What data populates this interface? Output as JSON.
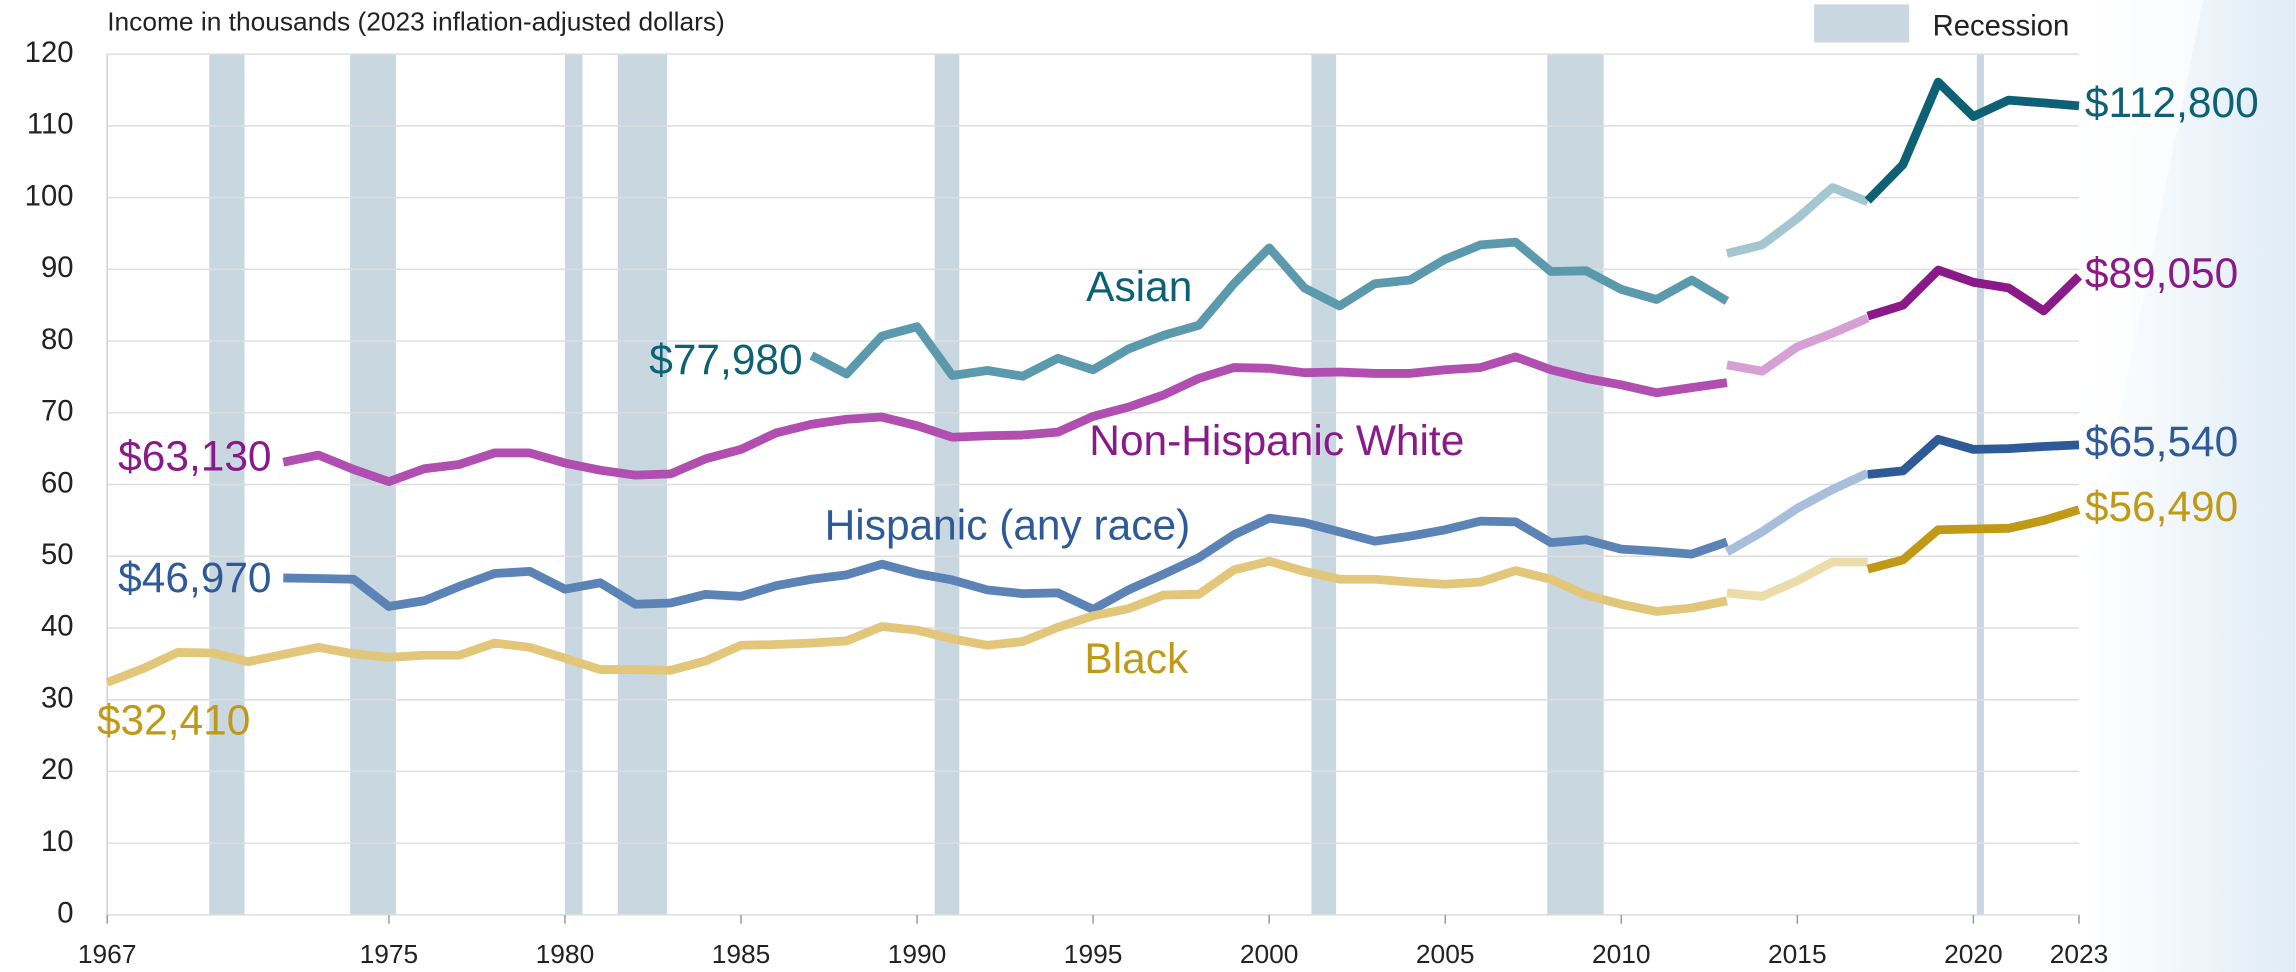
{
  "chart_data": {
    "type": "line",
    "title": "Income in thousands (2023 inflation-adjusted dollars)",
    "legend": {
      "label": "Recession",
      "color": "#c9d7e0",
      "position": "top-right"
    },
    "recessions": [
      [
        1969.9,
        1970.9
      ],
      [
        1973.9,
        1975.2
      ],
      [
        1980.0,
        1980.5
      ],
      [
        1981.5,
        1982.9
      ],
      [
        1990.5,
        1991.2
      ],
      [
        2001.2,
        2001.9
      ],
      [
        2007.9,
        2009.5
      ],
      [
        2020.1,
        2020.3
      ]
    ],
    "xlim": [
      1967,
      2023
    ],
    "xticks": [
      1967,
      1975,
      1980,
      1985,
      1990,
      1995,
      2000,
      2005,
      2010,
      2015,
      2020,
      2023
    ],
    "ylim": [
      0,
      120
    ],
    "yticks": [
      0,
      10,
      20,
      30,
      40,
      50,
      60,
      70,
      80,
      90,
      100,
      110,
      120
    ],
    "grid": true,
    "series": [
      {
        "name": "Asian",
        "color": "#0e6175",
        "segments": [
          {
            "color": "#5b9aac",
            "x": [
              1987,
              1988,
              1989,
              1990,
              1991,
              1992,
              1993,
              1994,
              1995,
              1996,
              1997,
              1998,
              1999,
              2000,
              2001,
              2002,
              2003,
              2004,
              2005,
              2006,
              2007,
              2008,
              2009,
              2010,
              2011,
              2012,
              2013
            ],
            "values": [
              77.98,
              75.4,
              80.7,
              82.0,
              75.2,
              75.9,
              75.1,
              77.6,
              76.0,
              78.9,
              80.8,
              82.2,
              88.0,
              93.0,
              87.4,
              84.9,
              88.0,
              88.5,
              91.4,
              93.4,
              93.8,
              89.7,
              89.8,
              87.2,
              85.8,
              88.5,
              85.6
            ],
            "value_labels": [
              "$77,980",
              null,
              null,
              null,
              null,
              null,
              null,
              null,
              null,
              null,
              null,
              null,
              null,
              null,
              null,
              null,
              null,
              null,
              null,
              null,
              null,
              null,
              null,
              null,
              null,
              null,
              null
            ]
          },
          {
            "color": "#a3c6d0",
            "x": [
              2013,
              2014,
              2015,
              2016,
              2017
            ],
            "values": [
              92.2,
              93.4,
              97.1,
              101.4,
              99.4
            ]
          },
          {
            "color": "#0e6175",
            "x": [
              2017,
              2018,
              2019,
              2020,
              2021,
              2022,
              2023
            ],
            "values": [
              99.6,
              104.6,
              116.1,
              111.3,
              113.6,
              113.2,
              112.8
            ],
            "value_labels": [
              null,
              null,
              null,
              null,
              null,
              null,
              "$112,800"
            ]
          }
        ]
      },
      {
        "name": "Non-Hispanic White",
        "color": "#8b1a89",
        "segments": [
          {
            "color": "#b04fb0",
            "x": [
              1972,
              1973,
              1974,
              1975,
              1976,
              1977,
              1978,
              1979,
              1980,
              1981,
              1982,
              1983,
              1984,
              1985,
              1986,
              1987,
              1988,
              1989,
              1990,
              1991,
              1992,
              1993,
              1994,
              1995,
              1996,
              1997,
              1998,
              1999,
              2000,
              2001,
              2002,
              2003,
              2004,
              2005,
              2006,
              2007,
              2008,
              2009,
              2010,
              2011,
              2012,
              2013
            ],
            "values": [
              63.13,
              64.1,
              62.1,
              60.4,
              62.2,
              62.8,
              64.4,
              64.4,
              63.0,
              62.0,
              61.3,
              61.5,
              63.6,
              64.9,
              67.2,
              68.4,
              69.1,
              69.4,
              68.2,
              66.6,
              66.8,
              66.9,
              67.3,
              69.5,
              70.8,
              72.5,
              74.8,
              76.3,
              76.2,
              75.6,
              75.7,
              75.5,
              75.5,
              76.0,
              76.3,
              77.8,
              76.0,
              74.8,
              73.9,
              72.8,
              73.5,
              74.2
            ],
            "value_labels": [
              "$63,130",
              null,
              null,
              null,
              null,
              null,
              null,
              null,
              null,
              null,
              null,
              null,
              null,
              null,
              null,
              null,
              null,
              null,
              null,
              null,
              null,
              null,
              null,
              null,
              null,
              null,
              null,
              null,
              null,
              null,
              null,
              null,
              null,
              null,
              null,
              null,
              null,
              null,
              null,
              null,
              null,
              null
            ]
          },
          {
            "color": "#d7a0d4",
            "x": [
              2013,
              2014,
              2015,
              2016,
              2017
            ],
            "values": [
              76.7,
              75.8,
              79.2,
              81.1,
              83.2
            ]
          },
          {
            "color": "#8b1a89",
            "x": [
              2017,
              2018,
              2019,
              2020,
              2021,
              2022,
              2023
            ],
            "values": [
              83.5,
              85.0,
              89.9,
              88.2,
              87.4,
              84.2,
              89.05
            ],
            "value_labels": [
              null,
              null,
              null,
              null,
              null,
              null,
              "$89,050"
            ]
          }
        ]
      },
      {
        "name": "Hispanic (any race)",
        "color": "#2e5a97",
        "segments": [
          {
            "color": "#5b83b6",
            "x": [
              1972,
              1973,
              1974,
              1975,
              1976,
              1977,
              1978,
              1979,
              1980,
              1981,
              1982,
              1983,
              1984,
              1985,
              1986,
              1987,
              1988,
              1989,
              1990,
              1991,
              1992,
              1993,
              1994,
              1995,
              1996,
              1997,
              1998,
              1999,
              2000,
              2001,
              2002,
              2003,
              2004,
              2005,
              2006,
              2007,
              2008,
              2009,
              2010,
              2011,
              2012,
              2013
            ],
            "values": [
              46.97,
              46.9,
              46.8,
              43.0,
              43.8,
              45.8,
              47.6,
              47.9,
              45.4,
              46.3,
              43.3,
              43.5,
              44.7,
              44.4,
              45.9,
              46.8,
              47.4,
              48.9,
              47.6,
              46.7,
              45.3,
              44.8,
              44.9,
              42.6,
              45.3,
              47.5,
              49.8,
              53.0,
              55.3,
              54.7,
              53.4,
              52.1,
              52.8,
              53.7,
              54.9,
              54.8,
              51.9,
              52.3,
              51.0,
              50.7,
              50.3,
              52.0
            ],
            "value_labels": [
              "$46,970",
              null,
              null,
              null,
              null,
              null,
              null,
              null,
              null,
              null,
              null,
              null,
              null,
              null,
              null,
              null,
              null,
              null,
              null,
              null,
              null,
              null,
              null,
              null,
              null,
              null,
              null,
              null,
              null,
              null,
              null,
              null,
              null,
              null,
              null,
              null,
              null,
              null,
              null,
              null,
              null,
              null
            ]
          },
          {
            "color": "#a8bfdc",
            "x": [
              2013,
              2014,
              2015,
              2016,
              2017
            ],
            "values": [
              50.6,
              53.4,
              56.7,
              59.3,
              61.6
            ]
          },
          {
            "color": "#2e5a97",
            "x": [
              2017,
              2018,
              2019,
              2020,
              2021,
              2022,
              2023
            ],
            "values": [
              61.4,
              61.9,
              66.3,
              64.9,
              65.0,
              65.3,
              65.54
            ],
            "value_labels": [
              null,
              null,
              null,
              null,
              null,
              null,
              "$65,540"
            ]
          }
        ]
      },
      {
        "name": "Black",
        "color": "#c09a16",
        "segments": [
          {
            "color": "#e2c77a",
            "x": [
              1967,
              1968,
              1969,
              1970,
              1971,
              1972,
              1973,
              1974,
              1975,
              1976,
              1977,
              1978,
              1979,
              1980,
              1981,
              1982,
              1983,
              1984,
              1985,
              1986,
              1987,
              1988,
              1989,
              1990,
              1991,
              1992,
              1993,
              1994,
              1995,
              1996,
              1997,
              1998,
              1999,
              2000,
              2001,
              2002,
              2003,
              2004,
              2005,
              2006,
              2007,
              2008,
              2009,
              2010,
              2011,
              2012,
              2013
            ],
            "values": [
              32.41,
              34.3,
              36.6,
              36.5,
              35.3,
              36.3,
              37.3,
              36.4,
              35.9,
              36.2,
              36.2,
              37.9,
              37.3,
              35.8,
              34.2,
              34.2,
              34.1,
              35.4,
              37.6,
              37.7,
              37.9,
              38.2,
              40.2,
              39.7,
              38.5,
              37.6,
              38.1,
              40.1,
              41.7,
              42.7,
              44.6,
              44.7,
              48.1,
              49.3,
              47.9,
              46.8,
              46.8,
              46.4,
              46.1,
              46.4,
              48.0,
              46.8,
              44.6,
              43.3,
              42.3,
              42.8,
              43.8
            ],
            "value_labels": [
              "$32,410",
              null,
              null,
              null,
              null,
              null,
              null,
              null,
              null,
              null,
              null,
              null,
              null,
              null,
              null,
              null,
              null,
              null,
              null,
              null,
              null,
              null,
              null,
              null,
              null,
              null,
              null,
              null,
              null,
              null,
              null,
              null,
              null,
              null,
              null,
              null,
              null,
              null,
              null,
              null,
              null,
              null,
              null,
              null,
              null,
              null,
              null
            ]
          },
          {
            "color": "#ecdcaa",
            "x": [
              2013,
              2014,
              2015,
              2016,
              2017
            ],
            "values": [
              44.9,
              44.4,
              46.6,
              49.2,
              49.2
            ]
          },
          {
            "color": "#c09a16",
            "x": [
              2017,
              2018,
              2019,
              2020,
              2021,
              2022,
              2023
            ],
            "values": [
              48.2,
              49.5,
              53.7,
              53.8,
              53.9,
              55.0,
              56.49
            ],
            "value_labels": [
              null,
              null,
              null,
              null,
              null,
              null,
              "$56,490"
            ]
          }
        ]
      }
    ]
  }
}
